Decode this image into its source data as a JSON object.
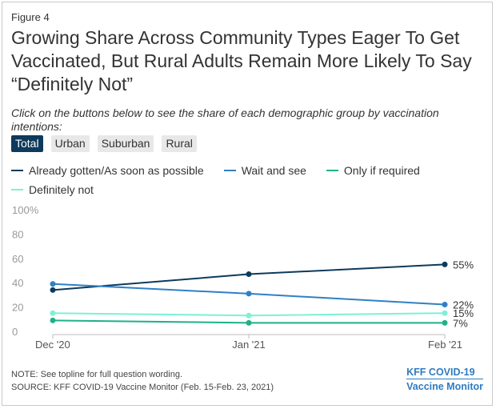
{
  "figure_label": "Figure 4",
  "title": "Growing Share Across Community Types Eager To Get Vaccinated, But Rural Adults Remain More Likely To Say “Definitely Not”",
  "subtitle": "Click on the buttons below to see the share of each demographic group by vaccination intentions:",
  "buttons": [
    {
      "label": "Total",
      "active": true
    },
    {
      "label": "Urban",
      "active": false
    },
    {
      "label": "Suburban",
      "active": false
    },
    {
      "label": "Rural",
      "active": false
    }
  ],
  "chart_data": {
    "type": "line",
    "x": [
      "Dec '20",
      "Jan '21",
      "Feb '21"
    ],
    "ylim": [
      0,
      100
    ],
    "yticks": [
      "0",
      "20",
      "40",
      "60",
      "80",
      "100%"
    ],
    "grid": false,
    "legend_position": "top-left",
    "series": [
      {
        "name": "Already gotten/As soon as possible",
        "values": [
          34,
          47,
          55
        ],
        "color": "#0e3a5b",
        "end_label": "55%"
      },
      {
        "name": "Wait and see",
        "values": [
          39,
          31,
          22
        ],
        "color": "#2f80c5",
        "end_label": "22%"
      },
      {
        "name": "Only if required",
        "values": [
          9,
          7,
          7
        ],
        "color": "#1fb08a",
        "end_label": "7%"
      },
      {
        "name": "Definitely not",
        "values": [
          15,
          13,
          15
        ],
        "color": "#7ef0d6",
        "end_label": "15%"
      }
    ]
  },
  "footer": {
    "note": "NOTE: See topline for full question wording.",
    "source": "SOURCE: KFF COVID-19 Vaccine Monitor (Feb. 15-Feb. 23, 2021)"
  },
  "logo": {
    "line1": "KFF COVID-19",
    "line2": "Vaccine Monitor"
  }
}
